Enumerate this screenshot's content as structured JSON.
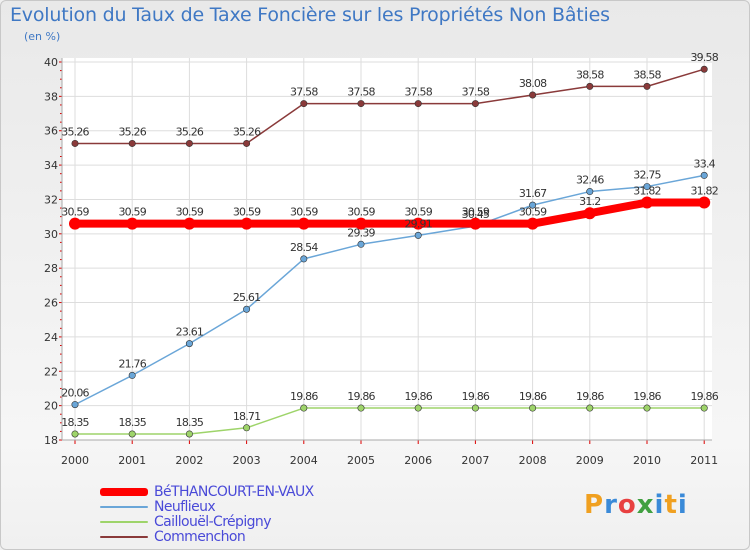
{
  "chart_data": {
    "type": "line",
    "title": "Evolution du Taux de Taxe Foncière sur les Propriétés Non Bâties",
    "subtitle": "(en %)",
    "x": [
      "2000",
      "2001",
      "2002",
      "2003",
      "2004",
      "2005",
      "2006",
      "2007",
      "2008",
      "2009",
      "2010",
      "2011"
    ],
    "ylim": [
      18,
      40
    ],
    "yticks": [
      "18",
      "20",
      "22",
      "24",
      "26",
      "28",
      "30",
      "32",
      "34",
      "36",
      "38",
      "40"
    ],
    "grid": true,
    "legend_position": "bottom-left",
    "series": [
      {
        "name": "BéTHANCOURT-EN-VAUX",
        "color": "#ff0000",
        "values": [
          30.59,
          30.59,
          30.59,
          30.59,
          30.59,
          30.59,
          30.59,
          30.59,
          30.59,
          31.2,
          31.82,
          31.82
        ],
        "labels": [
          "30.59",
          "30.59",
          "30.59",
          "30.59",
          "30.59",
          "30.59",
          "30.59",
          "30.59",
          "30.59",
          "31.2",
          "31.82",
          "31.82"
        ]
      },
      {
        "name": "Neuflieux",
        "color": "#6aa6d8",
        "values": [
          20.06,
          21.76,
          23.61,
          25.61,
          28.54,
          29.39,
          29.91,
          30.45,
          31.67,
          32.46,
          32.75,
          33.4
        ],
        "labels": [
          "20.06",
          "21.76",
          "23.61",
          "25.61",
          "28.54",
          "29.39",
          "29.91",
          "30.45",
          "31.67",
          "32.46",
          "32.75",
          "33.4"
        ]
      },
      {
        "name": "Caillouël-Crépigny",
        "color": "#9ed46a",
        "values": [
          18.35,
          18.35,
          18.35,
          18.71,
          19.86,
          19.86,
          19.86,
          19.86,
          19.86,
          19.86,
          19.86,
          19.86
        ],
        "labels": [
          "18.35",
          "18.35",
          "18.35",
          "18.71",
          "19.86",
          "19.86",
          "19.86",
          "19.86",
          "19.86",
          "19.86",
          "19.86",
          "19.86"
        ]
      },
      {
        "name": "Commenchon",
        "color": "#8a3a3a",
        "values": [
          35.26,
          35.26,
          35.26,
          35.26,
          37.58,
          37.58,
          37.58,
          37.58,
          38.08,
          38.58,
          38.58,
          39.58
        ],
        "labels": [
          "35.26",
          "35.26",
          "35.26",
          "35.26",
          "37.58",
          "37.58",
          "37.58",
          "37.58",
          "38.08",
          "38.58",
          "38.58",
          "39.58"
        ]
      }
    ]
  },
  "logo": {
    "text": "Proxiti",
    "letters": [
      "P",
      "r",
      "o",
      "x",
      "i",
      "t",
      "i"
    ],
    "colors": [
      "#f0a020",
      "#3a8ad8",
      "#e84040",
      "#40a040",
      "#3a8ad8",
      "#f0a020",
      "#3a8ad8"
    ]
  }
}
